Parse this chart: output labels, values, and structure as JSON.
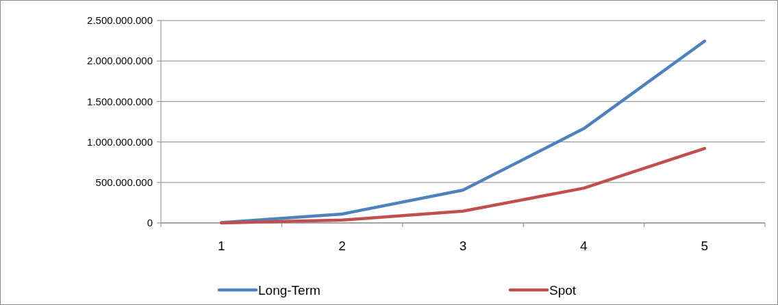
{
  "chart_data": {
    "type": "line",
    "categories": [
      "1",
      "2",
      "3",
      "4",
      "5"
    ],
    "series": [
      {
        "name": "Long-Term",
        "color": "#4f81bd",
        "values": [
          5000000,
          110000000,
          405000000,
          1165000000,
          2245000000
        ]
      },
      {
        "name": "Spot",
        "color": "#c0504d",
        "values": [
          0,
          35000000,
          145000000,
          430000000,
          920000000
        ]
      }
    ],
    "ylim": [
      0,
      2500000000
    ],
    "yticks": [
      {
        "value": 0,
        "label": "0"
      },
      {
        "value": 500000000,
        "label": "500.000.000"
      },
      {
        "value": 1000000000,
        "label": "1.000.000.000"
      },
      {
        "value": 1500000000,
        "label": "1.500.000.000"
      },
      {
        "value": 2000000000,
        "label": "2.000.000.000"
      },
      {
        "value": 2500000000,
        "label": "2.500.000.000"
      }
    ],
    "grid": "y",
    "legend": "bottom"
  }
}
